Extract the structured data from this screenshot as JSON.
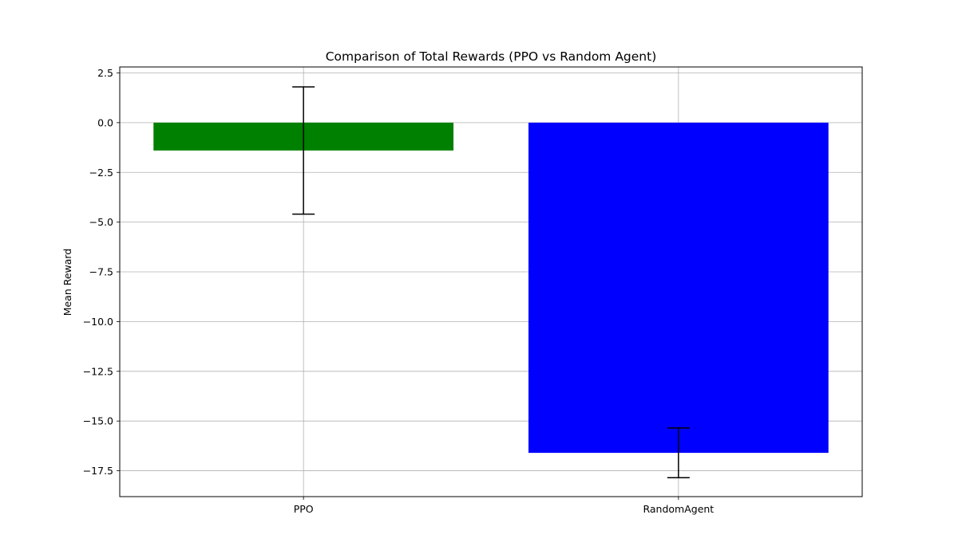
{
  "chart_data": {
    "type": "bar",
    "title": "Comparison of Total Rewards (PPO vs Random Agent)",
    "xlabel": "",
    "ylabel": "Mean Reward",
    "categories": [
      "PPO",
      "RandomAgent"
    ],
    "values": [
      -1.4,
      -16.6
    ],
    "errors": [
      3.2,
      1.25
    ],
    "colors": [
      "#008000",
      "#0000ff"
    ],
    "ylim": [
      -18.8,
      2.8
    ],
    "yticks": [
      2.5,
      0.0,
      -2.5,
      -5.0,
      -7.5,
      -10.0,
      -12.5,
      -15.0,
      -17.5
    ],
    "ytick_labels": [
      "2.5",
      "0.0",
      "−2.5",
      "−5.0",
      "−7.5",
      "−10.0",
      "−12.5",
      "−15.0",
      "−17.5"
    ],
    "grid": true,
    "legend": "none"
  }
}
